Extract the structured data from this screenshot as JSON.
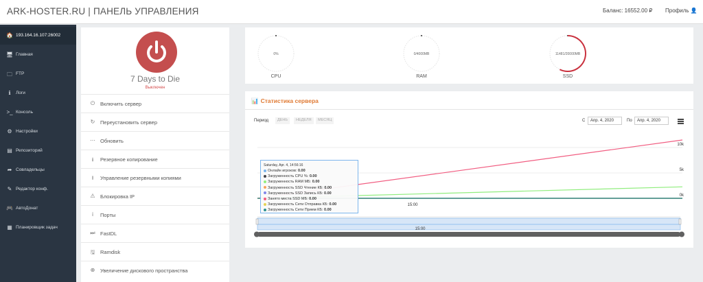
{
  "header": {
    "brand": "ARK-HOSTER.RU | ПАНЕЛЬ УПРАВЛЕНИЯ",
    "balance": "Баланс: 16552.00 ₽",
    "profile": "Профиль 👤"
  },
  "sidebar": {
    "items": [
      {
        "label": "193.164.16.107:26002",
        "icon": "home-icon",
        "glyph": "🏠"
      },
      {
        "label": "Главная",
        "icon": "monitor-icon",
        "glyph": "🖥"
      },
      {
        "label": "FTP",
        "icon": "folder-icon",
        "glyph": "🗀"
      },
      {
        "label": "Логи",
        "icon": "info-icon",
        "glyph": "ℹ"
      },
      {
        "label": "Консоль",
        "icon": "terminal-icon",
        "glyph": ">_"
      },
      {
        "label": "Настройки",
        "icon": "gears-icon",
        "glyph": "⚙"
      },
      {
        "label": "Репозиторий",
        "icon": "hdd-icon",
        "glyph": "▤"
      },
      {
        "label": "Совладельцы",
        "icon": "share-icon",
        "glyph": "➦"
      },
      {
        "label": "Редактор конф.",
        "icon": "edit-icon",
        "glyph": "✎"
      },
      {
        "label": "АвтоДонат",
        "icon": "gamepad-icon",
        "glyph": "🎮"
      },
      {
        "label": "Планировщик задач",
        "icon": "calendar-icon",
        "glyph": "▦"
      }
    ]
  },
  "server": {
    "name": "7 Days to Die",
    "status": "Выключен",
    "status_color": "#d44b4b",
    "power_color": "#c44e4e"
  },
  "actions": [
    {
      "label": "Включить сервер",
      "icon": "power-icon",
      "glyph": "⏻"
    },
    {
      "label": "Переустановить сервер",
      "icon": "refresh-icon",
      "glyph": "↻"
    },
    {
      "label": "Обновить",
      "icon": "spinner-icon",
      "glyph": "⋯"
    },
    {
      "label": "Резервное копирование",
      "icon": "download-icon",
      "glyph": "⭳"
    },
    {
      "label": "Управление резервными копиями",
      "icon": "upload-icon",
      "glyph": "⭱"
    },
    {
      "label": "Блокировка IP",
      "icon": "warning-icon",
      "glyph": "⚠"
    },
    {
      "label": "Порты",
      "icon": "info-icon",
      "glyph": "i"
    },
    {
      "label": "FastDL",
      "icon": "fast-forward-icon",
      "glyph": "⏭"
    },
    {
      "label": "Ramdisk",
      "icon": "save-icon",
      "glyph": "🖫"
    },
    {
      "label": "Увеличение дискового пространства",
      "icon": "plus-circle-icon",
      "glyph": "⊕"
    }
  ],
  "gauges": [
    {
      "name": "CPU",
      "value_text": "0%",
      "fraction": 0.0
    },
    {
      "name": "RAM",
      "value_text": "0/4000MB",
      "fraction": 0.0
    },
    {
      "name": "SSD",
      "value_text": "11481/20000MB",
      "fraction": 0.574
    }
  ],
  "stats": {
    "title": "Статистика сервера",
    "period_label": "Период",
    "periods": [
      "ДЕНЬ",
      "НЕДЕЛЯ",
      "МЕСЯЦ"
    ],
    "from_label": "С",
    "from_date": "Апр. 4, 2020",
    "to_label": "По",
    "to_date": "Апр. 4, 2020"
  },
  "chart_data": {
    "type": "line",
    "x_tick_labels": [
      "15:00"
    ],
    "navigator_label": "15:00",
    "y_tick_labels": [
      "10k",
      "5k",
      "0k"
    ],
    "ylim": [
      0,
      10000
    ],
    "series": [
      {
        "name": "Онлайн игроков",
        "color": "#7cb5ec",
        "values": [
          0,
          0
        ]
      },
      {
        "name": "Загруженность CPU %",
        "color": "#434348",
        "values": [
          0,
          0
        ]
      },
      {
        "name": "Загруженность RAM МБ",
        "color": "#90ed7d",
        "values": [
          0,
          2250
        ]
      },
      {
        "name": "Загруженность SSD Чтение КБ",
        "color": "#f7a35c",
        "values": [
          0,
          0
        ]
      },
      {
        "name": "Загруженность SSD Запись КБ",
        "color": "#8085e9",
        "values": [
          0,
          0
        ]
      },
      {
        "name": "Занято места SSD МБ",
        "color": "#f15c80",
        "values": [
          0,
          11481
        ]
      },
      {
        "name": "Загруженность Сети Отправка КБ",
        "color": "#e4d354",
        "values": [
          0,
          0
        ]
      },
      {
        "name": "Загруженность Сети Прием КБ",
        "color": "#2b908f",
        "values": [
          0,
          0
        ]
      }
    ],
    "tooltip": {
      "title": "Saturday, Apr. 4, 14:56:16",
      "values": [
        "0.00",
        "0.00",
        "0.00",
        "0.00",
        "0.00",
        "0.00",
        "0.00",
        "0.00"
      ]
    }
  }
}
